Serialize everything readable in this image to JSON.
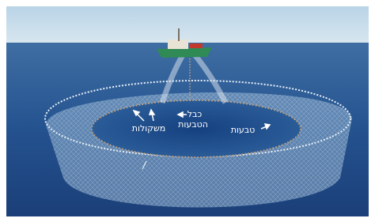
{
  "annotations": [
    {
      "lines": [
        "משקולות"
      ]
    },
    {
      "lines": [
        "כבל",
        "הטבעות"
      ]
    },
    {
      "lines": [
        "טבעות"
      ]
    }
  ]
}
